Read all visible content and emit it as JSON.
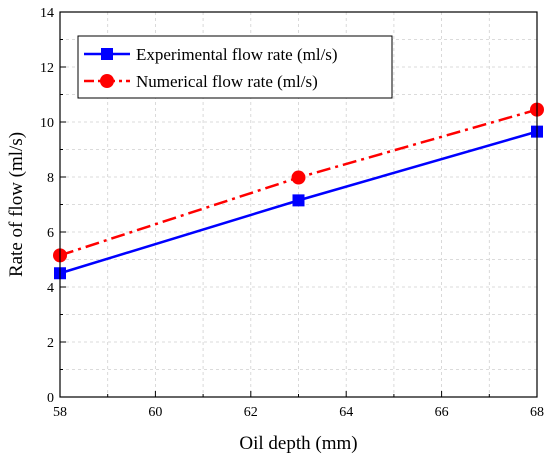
{
  "chart_data": {
    "type": "line",
    "title": "",
    "xlabel": "Oil depth (mm)",
    "ylabel": "Rate of flow  (ml/s)",
    "xlim": [
      58,
      68
    ],
    "ylim": [
      0,
      14
    ],
    "x_ticks": [
      "58",
      "60",
      "62",
      "64",
      "66",
      "68"
    ],
    "y_ticks": [
      "0",
      "2",
      "4",
      "6",
      "8",
      "10",
      "12",
      "14"
    ],
    "grid": true,
    "legend_position": "top-left",
    "series": [
      {
        "name": "Experimental flow rate (ml/s)",
        "x": [
          58,
          63,
          68
        ],
        "y": [
          4.5,
          7.15,
          9.65
        ],
        "color": "#0000ff",
        "line_style": "solid",
        "marker": "square"
      },
      {
        "name": "Numerical flow rate (ml/s)",
        "x": [
          58,
          63,
          68
        ],
        "y": [
          5.15,
          7.98,
          10.45
        ],
        "color": "#ff0000",
        "line_style": "dash-dot",
        "marker": "circle"
      }
    ]
  }
}
